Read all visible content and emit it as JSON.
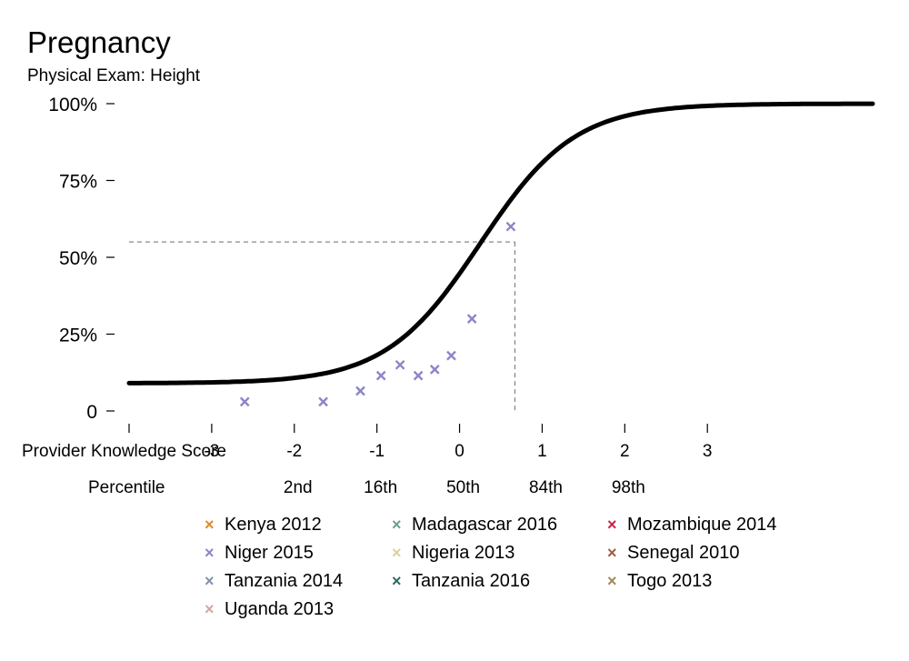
{
  "title": "Pregnancy",
  "subtitle": "Physical Exam: Height",
  "chart_data": {
    "type": "scatter",
    "title": "Pregnancy",
    "subtitle": "Physical Exam: Height",
    "xlabel": "Provider Knowledge Score",
    "x_secondary_label": "Percentile",
    "xlim": [
      -4,
      5
    ],
    "ylim": [
      0,
      100
    ],
    "y_ticks": [
      0,
      25,
      50,
      75,
      100
    ],
    "y_tick_labels": [
      "0",
      "25%",
      "50%",
      "75%",
      "100%"
    ],
    "x_ticks": [
      -4,
      -3,
      -2,
      -1,
      0,
      1,
      2,
      3
    ],
    "x_tick_labels": [
      "",
      "-3",
      "-2",
      "-1",
      "0",
      "1",
      "2",
      "3"
    ],
    "percentile_ticks": [
      {
        "x": -2,
        "label": "2nd"
      },
      {
        "x": -1,
        "label": "16th"
      },
      {
        "x": 0,
        "label": "50th"
      },
      {
        "x": 1,
        "label": "84th"
      },
      {
        "x": 2,
        "label": "98th"
      }
    ],
    "curve": {
      "type": "logistic",
      "lower": 9,
      "upper": 100,
      "midpoint": 0.25,
      "slope": 1.75,
      "x_range": [
        -4,
        5
      ]
    },
    "reference_point": {
      "x": 0.67,
      "y": 55
    },
    "series": [
      {
        "name": "Niger 2015",
        "color": "#8b86c8",
        "x": [
          -2.6,
          -1.65,
          -1.2,
          -0.95,
          -0.72,
          -0.5,
          -0.3,
          -0.1,
          0.15,
          0.62
        ],
        "y": [
          3,
          3,
          6.5,
          11.5,
          15,
          11.5,
          13.5,
          18,
          30,
          60
        ]
      }
    ],
    "legend": [
      {
        "label": "Kenya 2012",
        "color": "#e08a2b"
      },
      {
        "label": "Madagascar 2016",
        "color": "#6e9e8c"
      },
      {
        "label": "Mozambique 2014",
        "color": "#d11f45"
      },
      {
        "label": "Niger 2015",
        "color": "#8b86c8"
      },
      {
        "label": "Nigeria 2013",
        "color": "#d9d29a"
      },
      {
        "label": "Senegal 2010",
        "color": "#a3583d"
      },
      {
        "label": "Tanzania 2014",
        "color": "#8193a8"
      },
      {
        "label": "Tanzania 2016",
        "color": "#2f6b5f"
      },
      {
        "label": "Togo 2013",
        "color": "#a08a55"
      },
      {
        "label": "Uganda 2013",
        "color": "#cfa9a0"
      }
    ],
    "legend_position": "bottom",
    "grid": false
  }
}
